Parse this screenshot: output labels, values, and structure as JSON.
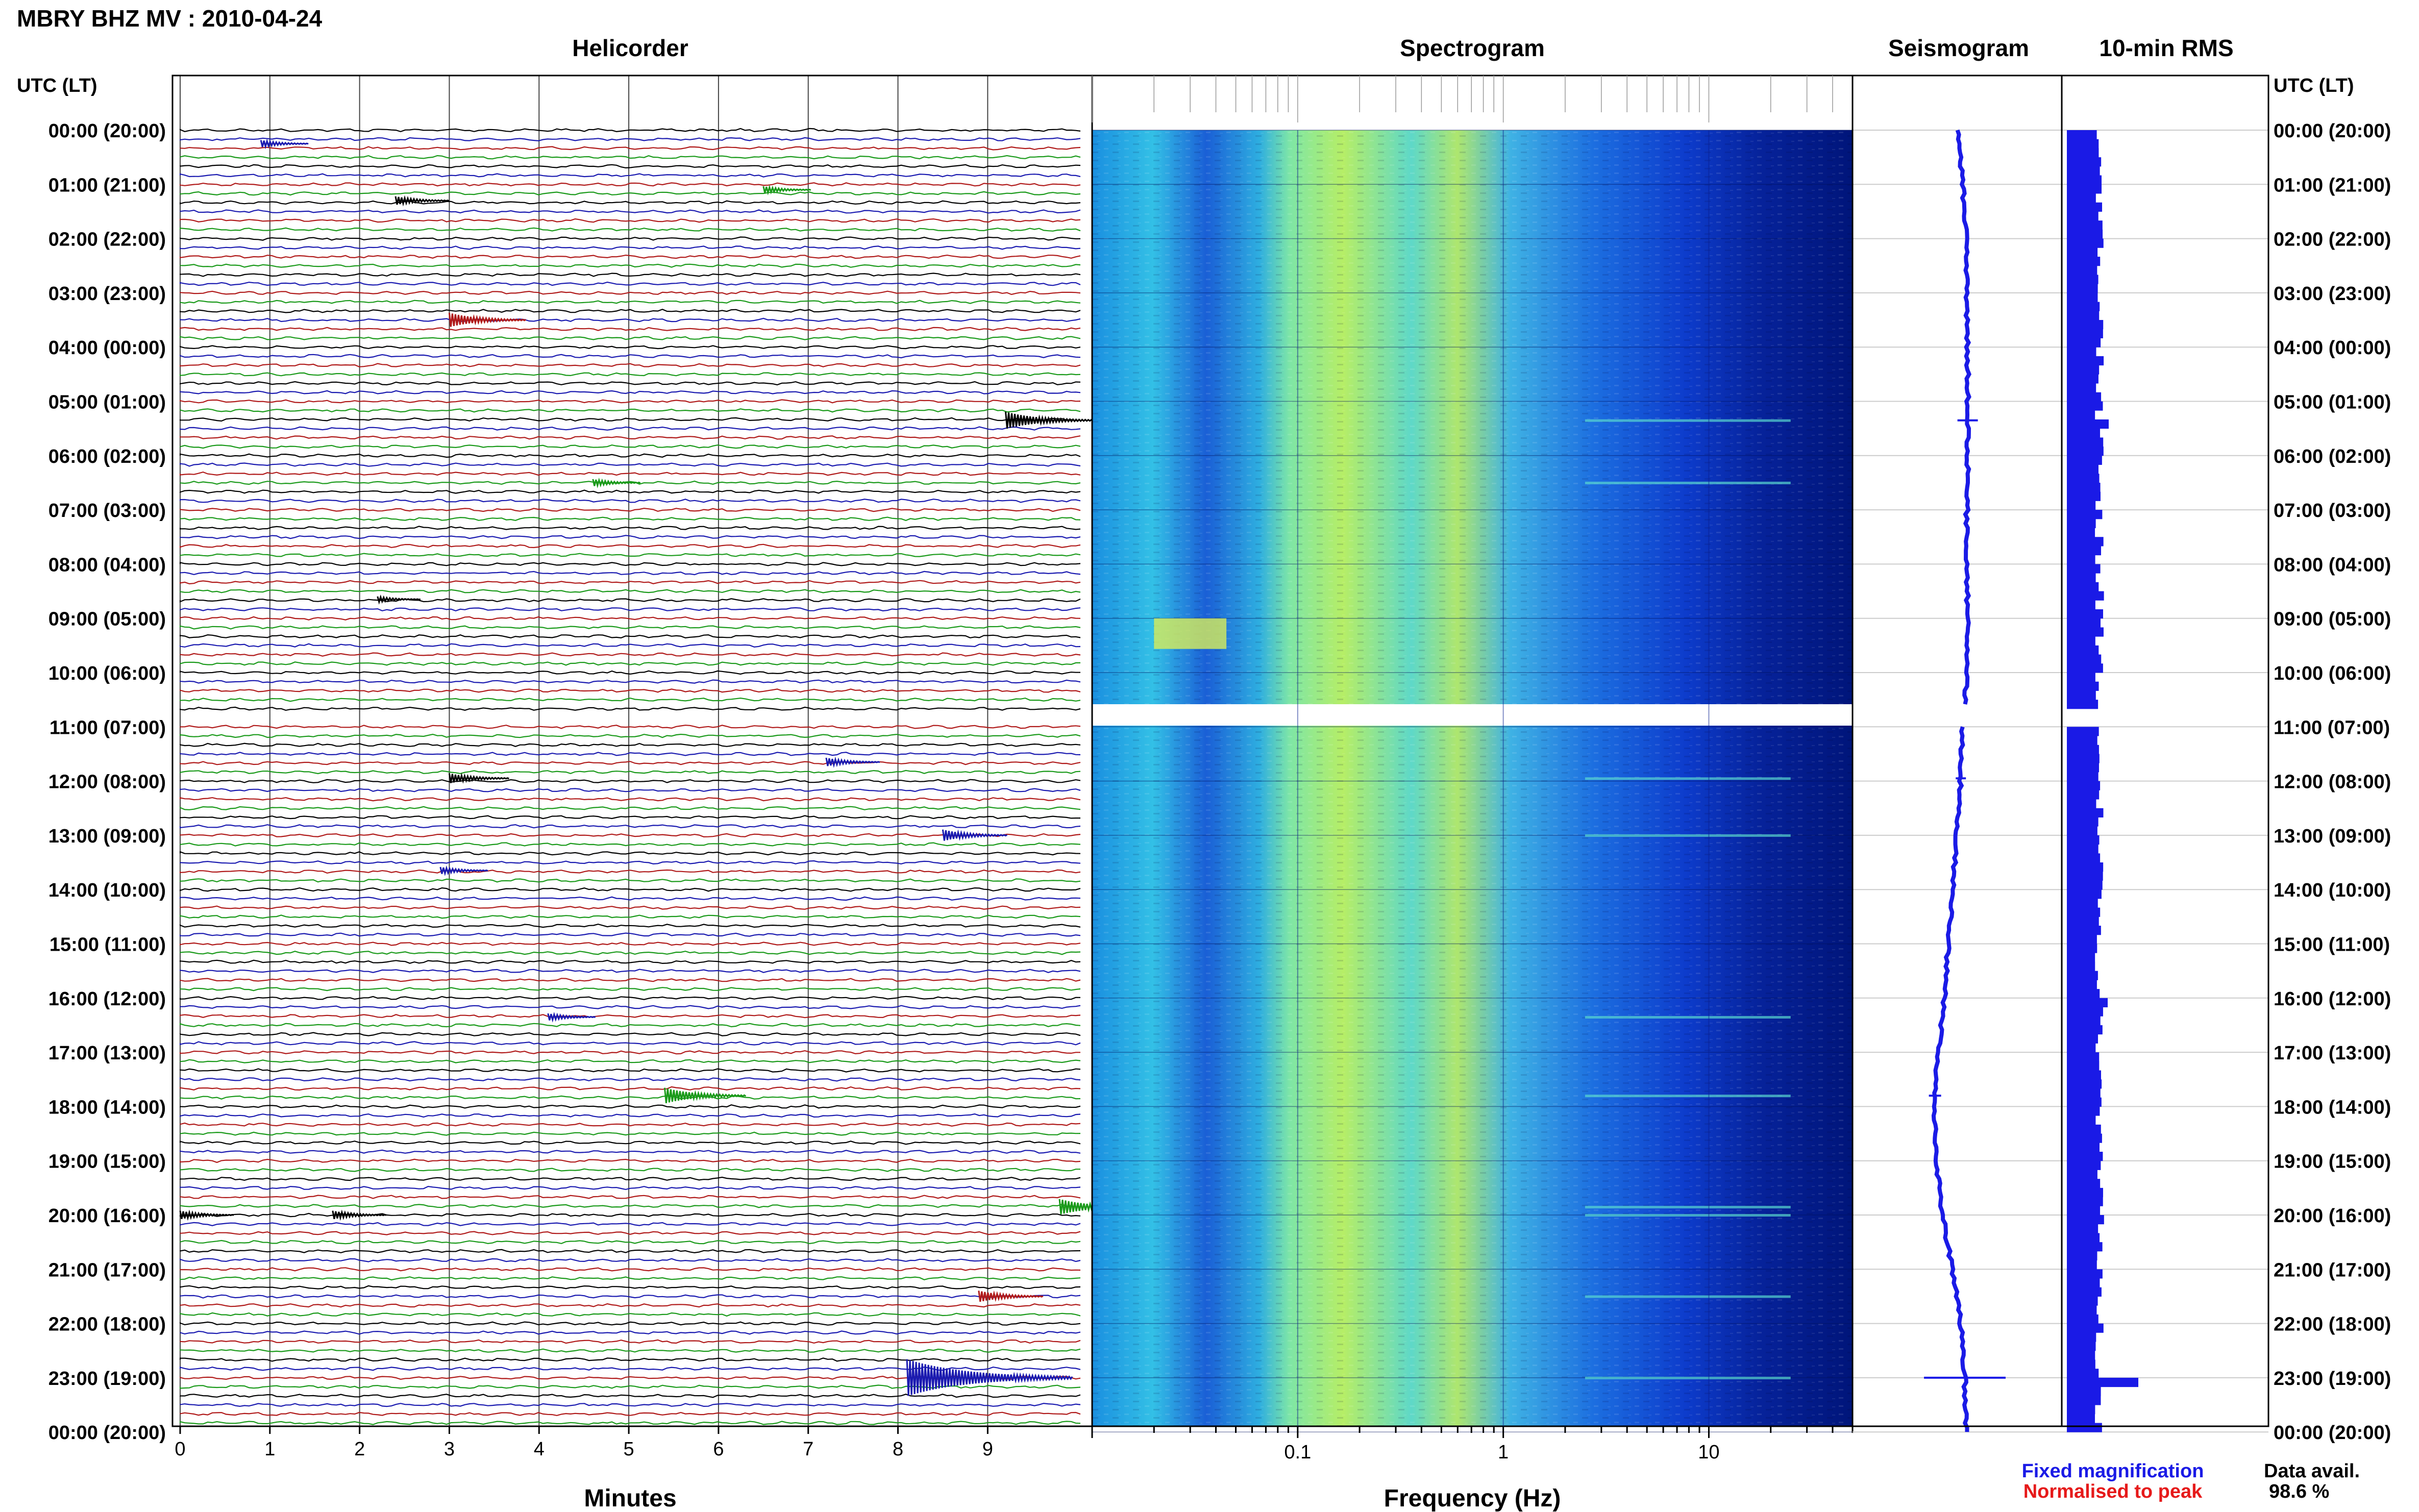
{
  "title": "MBRY BHZ MV : 2010-04-24",
  "panel_titles": {
    "helicorder": "Helicorder",
    "spectrogram": "Spectrogram",
    "seismogram": "Seismogram",
    "rms": "10-min RMS"
  },
  "time_axis_label": "UTC (LT)",
  "time_labels": [
    "00:00 (20:00)",
    "01:00 (21:00)",
    "02:00 (22:00)",
    "03:00 (23:00)",
    "04:00 (00:00)",
    "05:00 (01:00)",
    "06:00 (02:00)",
    "07:00 (03:00)",
    "08:00 (04:00)",
    "09:00 (05:00)",
    "10:00 (06:00)",
    "11:00 (07:00)",
    "12:00 (08:00)",
    "13:00 (09:00)",
    "14:00 (10:00)",
    "15:00 (11:00)",
    "16:00 (12:00)",
    "17:00 (13:00)",
    "18:00 (14:00)",
    "19:00 (15:00)",
    "20:00 (16:00)",
    "21:00 (17:00)",
    "22:00 (18:00)",
    "23:00 (19:00)",
    "00:00 (20:00)"
  ],
  "helicorder": {
    "xlabel": "Minutes",
    "ticks": [
      "0",
      "1",
      "2",
      "3",
      "4",
      "5",
      "6",
      "7",
      "8",
      "9"
    ],
    "xlim": [
      0,
      10
    ],
    "trace_colors": [
      "#000000",
      "#1a1ab0",
      "#b01a1a",
      "#1a9a1a"
    ],
    "events": [
      {
        "hour": 0.25,
        "minute": 0.9,
        "amp": 0.5,
        "color": "#1a1ab0"
      },
      {
        "hour": 1.3,
        "minute": 2.4,
        "amp": 0.6,
        "color": "#000000"
      },
      {
        "hour": 1.1,
        "minute": 6.5,
        "amp": 0.5,
        "color": "#1a9a1a"
      },
      {
        "hour": 3.5,
        "minute": 3.0,
        "amp": 1.0,
        "color": "#b01a1a"
      },
      {
        "hour": 5.35,
        "minute": 9.2,
        "amp": 1.2,
        "color": "#000000"
      },
      {
        "hour": 6.5,
        "minute": 4.6,
        "amp": 0.5,
        "color": "#1a9a1a"
      },
      {
        "hour": 8.65,
        "minute": 2.2,
        "amp": 0.4,
        "color": "#000000"
      },
      {
        "hour": 11.65,
        "minute": 7.2,
        "amp": 0.6,
        "color": "#1a1ab0"
      },
      {
        "hour": 11.95,
        "minute": 3.0,
        "amp": 0.7,
        "color": "#000000"
      },
      {
        "hour": 13.0,
        "minute": 8.5,
        "amp": 0.8,
        "color": "#1a1ab0"
      },
      {
        "hour": 13.65,
        "minute": 2.9,
        "amp": 0.5,
        "color": "#1a1ab0"
      },
      {
        "hour": 16.35,
        "minute": 4.1,
        "amp": 0.5,
        "color": "#1a1ab0"
      },
      {
        "hour": 17.8,
        "minute": 5.4,
        "amp": 1.1,
        "color": "#1a9a1a"
      },
      {
        "hour": 19.85,
        "minute": 9.8,
        "amp": 1.1,
        "color": "#1a9a1a"
      },
      {
        "hour": 20.0,
        "minute": 0.0,
        "amp": 0.6,
        "color": "#000000"
      },
      {
        "hour": 20.0,
        "minute": 1.7,
        "amp": 0.6,
        "color": "#000000"
      },
      {
        "hour": 21.5,
        "minute": 8.9,
        "amp": 0.8,
        "color": "#b01a1a"
      },
      {
        "hour": 23.0,
        "minute": 8.1,
        "amp": 2.6,
        "color": "#1a1ab0"
      }
    ]
  },
  "spectrogram": {
    "xlabel": "Frequency (Hz)",
    "scale": "log",
    "xlim": [
      0.01,
      50
    ],
    "ticks": [
      "0.1",
      "1",
      "10"
    ],
    "colormap": [
      "#00157a",
      "#0a2ab8",
      "#1660e6",
      "#2aa6e8",
      "#44d6c0",
      "#9ae86a",
      "#e8e84a"
    ],
    "data_gap_hours": [
      10.6,
      10.95
    ]
  },
  "seismogram": {
    "drift_profile": [
      0,
      0.1,
      0.18,
      0.2,
      0.22,
      0.22,
      0.22,
      0.2,
      0.2,
      0.22,
      0.22,
      0.1,
      0.05,
      -0.05,
      -0.15,
      -0.25,
      -0.35,
      -0.5,
      -0.6,
      -0.55,
      -0.4,
      -0.15,
      0.05,
      0.15,
      0.18
    ],
    "color": "#1a1ae6"
  },
  "rms": {
    "color": "#1a1ae6",
    "bar_count": 144,
    "peak_hour": 23.0
  },
  "legend": {
    "fixed": "Fixed magnification",
    "normalised": "Normalised to peak"
  },
  "data_avail": {
    "label": "Data avail.",
    "value": "98.6 %"
  }
}
